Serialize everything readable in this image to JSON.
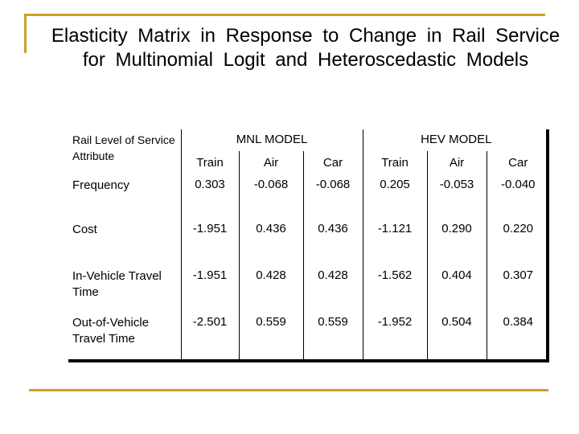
{
  "title": "Elasticity Matrix in Response to Change in Rail Service for Multinomial Logit and Heteroscedastic Models",
  "table": {
    "attribute_header": "Rail Level of Service Attribute",
    "groups": [
      "MNL MODEL",
      "HEV MODEL"
    ],
    "subheaders": [
      "Train",
      "Air",
      "Car",
      "Train",
      "Air",
      "Car"
    ],
    "rows": [
      {
        "label": "Frequency",
        "values": [
          "0.303",
          "-0.068",
          "-0.068",
          "0.205",
          "-0.053",
          "-0.040"
        ]
      },
      {
        "label": "Cost",
        "values": [
          "-1.951",
          "0.436",
          "0.436",
          "-1.121",
          "0.290",
          "0.220"
        ]
      },
      {
        "label": "In-Vehicle Travel Time",
        "values": [
          "-1.951",
          "0.428",
          "0.428",
          "-1.562",
          "0.404",
          "0.307"
        ]
      },
      {
        "label": "Out-of-Vehicle Travel Time",
        "values": [
          "-2.501",
          "0.559",
          "0.559",
          "-1.952",
          "0.504",
          "0.384"
        ]
      }
    ]
  },
  "colors": {
    "accent": "#c9a227",
    "text": "#000000",
    "background": "#ffffff"
  }
}
